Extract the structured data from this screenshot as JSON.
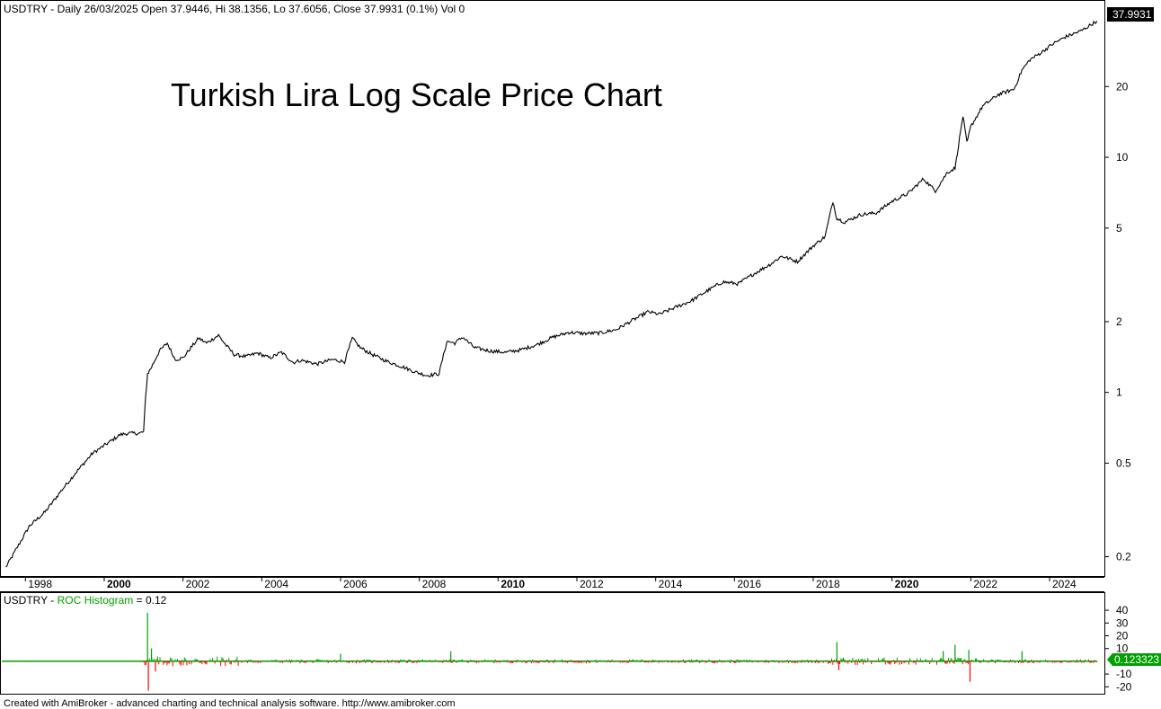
{
  "header": {
    "symbol": "USDTRY",
    "info": "USDTRY - Daily 26/03/2025 Open 37.9446, Hi 38.1356, Lo 37.6056, Close 37.9931 (0.1%) Vol 0"
  },
  "footer": {
    "text": "Created with AmiBroker - advanced charting and technical analysis software. http://www.amibroker.com"
  },
  "chart_data": [
    {
      "type": "line",
      "title": "Turkish Lira Log Scale Price Chart",
      "yscale": "log",
      "ylim": [
        0.17,
        42
      ],
      "xlim": [
        1997.4,
        2025.3
      ],
      "last_value_label": "37.9931",
      "y_ticks": [
        0.2,
        0.5,
        1,
        2,
        5,
        10,
        20
      ],
      "y_tick_labels": [
        "0.2",
        "0.5",
        "1",
        "2",
        "5",
        "10",
        "20"
      ],
      "x_ticks": [
        1998,
        2000,
        2002,
        2004,
        2006,
        2008,
        2010,
        2012,
        2014,
        2016,
        2018,
        2020,
        2022,
        2024
      ],
      "x_tick_labels": [
        "1998",
        "2000",
        "2002",
        "2004",
        "2006",
        "2008",
        "2010",
        "2012",
        "2014",
        "2016",
        "2018",
        "2020",
        "2022",
        "2024"
      ],
      "x_bold_ticks": [
        "2000",
        "2010",
        "2020"
      ],
      "grid": false,
      "series": [
        {
          "x": [
            1997.5,
            1997.8,
            1998.1,
            1998.5,
            1998.9,
            1999.3,
            1999.7,
            2000.1,
            2000.4,
            2000.6,
            2000.9,
            2001.0,
            2001.05,
            2001.1,
            2001.2,
            2001.4,
            2001.6,
            2001.8,
            2002.0,
            2002.2,
            2002.4,
            2002.6,
            2002.9,
            2003.1,
            2003.3,
            2003.6,
            2003.9,
            2004.2,
            2004.5,
            2004.8,
            2005.0,
            2005.4,
            2005.8,
            2006.1,
            2006.3,
            2006.5,
            2006.8,
            2007.2,
            2007.6,
            2007.9,
            2008.2,
            2008.5,
            2008.7,
            2008.9,
            2009.1,
            2009.4,
            2009.8,
            2010.2,
            2010.6,
            2011.0,
            2011.4,
            2011.8,
            2012.2,
            2012.6,
            2013.0,
            2013.4,
            2013.8,
            2014.1,
            2014.5,
            2014.9,
            2015.3,
            2015.7,
            2016.1,
            2016.5,
            2016.9,
            2017.2,
            2017.6,
            2018.0,
            2018.3,
            2018.5,
            2018.6,
            2018.8,
            2019.2,
            2019.6,
            2020.0,
            2020.4,
            2020.8,
            2021.1,
            2021.4,
            2021.6,
            2021.8,
            2021.9,
            2022.0,
            2022.3,
            2022.7,
            2023.1,
            2023.3,
            2023.5,
            2023.8,
            2024.1,
            2024.4,
            2024.8,
            2025.2
          ],
          "y": [
            0.18,
            0.22,
            0.27,
            0.31,
            0.38,
            0.46,
            0.55,
            0.61,
            0.66,
            0.67,
            0.67,
            0.68,
            0.95,
            1.2,
            1.28,
            1.5,
            1.62,
            1.38,
            1.4,
            1.55,
            1.7,
            1.62,
            1.75,
            1.58,
            1.45,
            1.42,
            1.47,
            1.4,
            1.48,
            1.34,
            1.37,
            1.32,
            1.38,
            1.35,
            1.7,
            1.55,
            1.45,
            1.35,
            1.28,
            1.22,
            1.18,
            1.2,
            1.65,
            1.62,
            1.72,
            1.55,
            1.5,
            1.48,
            1.52,
            1.6,
            1.72,
            1.8,
            1.78,
            1.79,
            1.85,
            2.02,
            2.2,
            2.15,
            2.3,
            2.45,
            2.7,
            2.95,
            2.9,
            3.2,
            3.5,
            3.8,
            3.6,
            4.2,
            4.6,
            6.5,
            5.5,
            5.3,
            5.7,
            5.8,
            6.5,
            7.0,
            8.1,
            7.2,
            8.6,
            9.0,
            15.0,
            11.5,
            13.5,
            16.5,
            18.5,
            19.5,
            23.5,
            26.0,
            28.0,
            30.5,
            32.5,
            34.5,
            38.0
          ]
        }
      ]
    },
    {
      "type": "bar",
      "title": "ROC Histogram",
      "label": "USDTRY - ROC Histogram = 0.12",
      "label_prefix": "USDTRY - ",
      "label_series": "ROC Histogram",
      "label_suffix": " = 0.12",
      "last_value_label": "0.123323",
      "ylim": [
        -24,
        45
      ],
      "y_ticks": [
        40,
        30,
        20,
        10,
        -10,
        -20
      ],
      "y_tick_labels": [
        "40",
        "30",
        "20",
        "10",
        "-10",
        "-20"
      ],
      "positive_color": "#00a000",
      "negative_color": "#ff0000",
      "spikes": [
        {
          "x": 2001.1,
          "value": 38
        },
        {
          "x": 2001.12,
          "value": -23
        },
        {
          "x": 2001.2,
          "value": 10
        },
        {
          "x": 2001.3,
          "value": -8
        },
        {
          "x": 2006.0,
          "value": 6
        },
        {
          "x": 2008.8,
          "value": 8
        },
        {
          "x": 2018.6,
          "value": 15
        },
        {
          "x": 2018.65,
          "value": -7
        },
        {
          "x": 2021.3,
          "value": 8
        },
        {
          "x": 2021.6,
          "value": 13
        },
        {
          "x": 2021.95,
          "value": 9
        },
        {
          "x": 2021.98,
          "value": -16
        },
        {
          "x": 2023.3,
          "value": 8
        }
      ]
    }
  ]
}
